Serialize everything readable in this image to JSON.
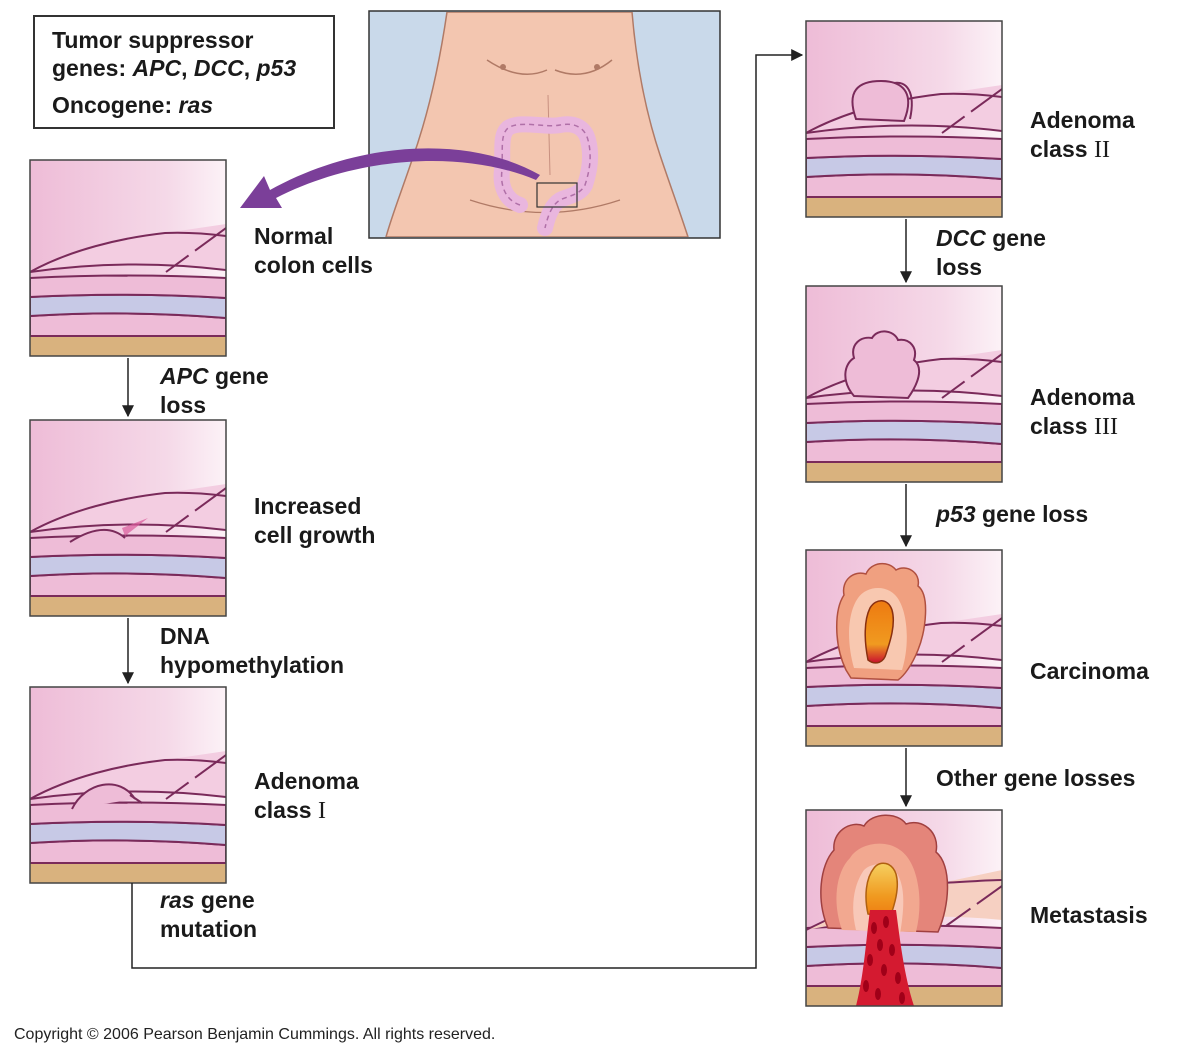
{
  "legend": {
    "tumor_suppressor_prefix": "Tumor suppressor",
    "genes_prefix": "genes: ",
    "gene_apc": "APC",
    "comma": ", ",
    "gene_dcc": "DCC",
    "gene_p53": "p53",
    "oncogene_prefix": "Oncogene: ",
    "oncogene_ras": "ras"
  },
  "stages": [
    {
      "line1": "Normal",
      "line2": "colon cells",
      "roman": ""
    },
    {
      "line1": "Increased",
      "line2": "cell growth",
      "roman": ""
    },
    {
      "line1": "Adenoma",
      "line2": "class",
      "roman": "I"
    },
    {
      "line1": "Adenoma",
      "line2": "class",
      "roman": "II"
    },
    {
      "line1": "Adenoma",
      "line2": "class",
      "roman": "III"
    },
    {
      "line1": "Carcinoma",
      "line2": "",
      "roman": ""
    },
    {
      "line1": "Metastasis",
      "line2": "",
      "roman": ""
    }
  ],
  "transitions": [
    {
      "gene": "APC",
      "rest1": " gene",
      "line2": "loss"
    },
    {
      "gene": "",
      "rest1": "DNA",
      "line2": "hypomethylation"
    },
    {
      "gene": "ras",
      "rest1": " gene",
      "line2": "mutation"
    },
    {
      "gene": "DCC",
      "rest1": " gene",
      "line2": "loss"
    },
    {
      "gene": "p53",
      "rest1": " gene loss",
      "line2": ""
    },
    {
      "gene": "",
      "rest1": "Other gene losses",
      "line2": ""
    }
  ],
  "copyright": "Copyright © 2006 Pearson Benjamin Cummings. All rights reserved.",
  "colors": {
    "mucosa_pink": "#f5d9e8",
    "tissue_line": "#7a2a5a",
    "submucosa_blue": "#c7c9e6",
    "muscle_tan": "#d9b27e",
    "body_skin": "#f3c6b0",
    "body_bg": "#c9d9ea",
    "colon_pink": "#e9b6de",
    "arrow_purple": "#7b3f99",
    "tumor_orange": "#f0a080",
    "tumor_core": "#ee7a10",
    "blood_red": "#c40020"
  }
}
